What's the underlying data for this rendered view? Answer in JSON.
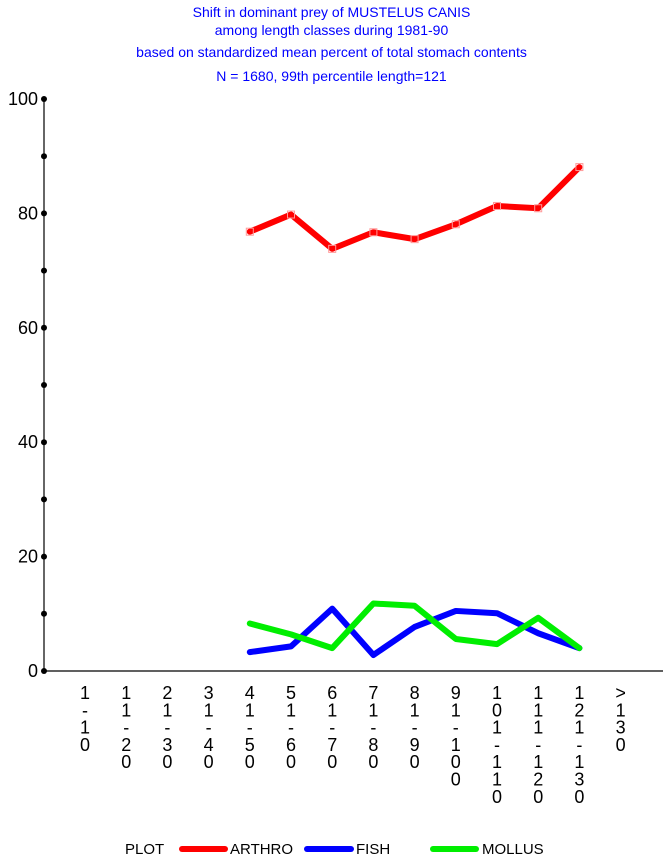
{
  "chart_data": {
    "type": "line",
    "title_lines": [
      "Shift in dominant prey of MUSTELUS CANIS",
      "among length classes during 1981-90",
      "based on standardized mean percent of  total stomach contents",
      "N = 1680, 99th percentile  length=121"
    ],
    "xlabel": "",
    "ylabel": "",
    "ylim": [
      0,
      100
    ],
    "yticks": [
      "0",
      "20",
      "40",
      "60",
      "80",
      "100"
    ],
    "categories": [
      [
        "1",
        "-",
        "1",
        "0"
      ],
      [
        "1",
        "1",
        "-",
        "2",
        "0"
      ],
      [
        "2",
        "1",
        "-",
        "3",
        "0"
      ],
      [
        "3",
        "1",
        "-",
        "4",
        "0"
      ],
      [
        "4",
        "1",
        "-",
        "5",
        "0"
      ],
      [
        "5",
        "1",
        "-",
        "6",
        "0"
      ],
      [
        "6",
        "1",
        "-",
        "7",
        "0"
      ],
      [
        "7",
        "1",
        "-",
        "8",
        "0"
      ],
      [
        "8",
        "1",
        "-",
        "9",
        "0"
      ],
      [
        "9",
        "1",
        "-",
        "1",
        "0",
        "0"
      ],
      [
        "1",
        "0",
        "1",
        "-",
        "1",
        "1",
        "0"
      ],
      [
        "1",
        "1",
        "1",
        "-",
        "1",
        "2",
        "0"
      ],
      [
        "1",
        "2",
        "1",
        "-",
        "1",
        "3",
        "0"
      ],
      [
        ">",
        "1",
        "3",
        "0"
      ]
    ],
    "legend_title": "PLOT",
    "legend_position": "bottom",
    "series": [
      {
        "name": "ARTHRO",
        "color": "#ff0000",
        "markers": true,
        "values": [
          null,
          null,
          null,
          null,
          76.8,
          79.8,
          73.8,
          76.7,
          75.5,
          78.1,
          81.3,
          80.9,
          88.1,
          null
        ]
      },
      {
        "name": "FISH",
        "color": "#0000ff",
        "markers": false,
        "values": [
          null,
          null,
          null,
          null,
          3.3,
          4.3,
          10.9,
          2.8,
          7.7,
          10.5,
          10.1,
          6.6,
          4.0,
          null
        ]
      },
      {
        "name": "MOLLUS",
        "color": "#00ee00",
        "markers": false,
        "values": [
          null,
          null,
          null,
          null,
          8.3,
          6.4,
          4.0,
          11.8,
          11.4,
          5.6,
          4.7,
          9.3,
          4.0,
          null
        ]
      }
    ]
  }
}
